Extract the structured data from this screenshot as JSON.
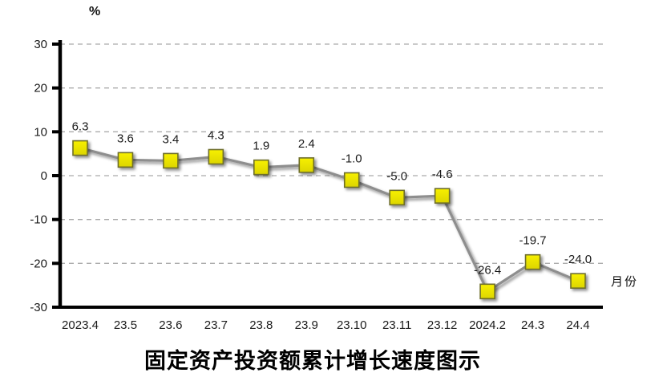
{
  "chart_data": {
    "type": "line",
    "title": "固定资产投资额累计增长速度图示",
    "ylabel": "%",
    "xlabel": "月份",
    "categories": [
      "2023.4",
      "23.5",
      "23.6",
      "23.7",
      "23.8",
      "23.9",
      "23.10",
      "23.11",
      "23.12",
      "2024.2",
      "24.3",
      "24.4"
    ],
    "values": [
      6.3,
      3.6,
      3.4,
      4.3,
      1.9,
      2.4,
      -1.0,
      -5.0,
      -4.6,
      -26.4,
      -19.7,
      -24.0
    ],
    "point_labels": [
      "6.3",
      "3.6",
      "3.4",
      "4.3",
      "1.9",
      "2.4",
      "-1.0",
      "-5.0",
      "-4.6",
      "-26.4",
      "-19.7",
      "-24.0"
    ],
    "ylim": [
      -30,
      30
    ],
    "ytick_interval": 10,
    "yticks": [
      "30",
      "20",
      "10",
      "0",
      "-10",
      "-20",
      "-30"
    ],
    "grid": true,
    "gridline_style": "dashed",
    "legend": "none",
    "colors": {
      "marker_fill_light": "#f7f000",
      "marker_fill": "#dcd500",
      "marker_border": "#6e6e2a",
      "line": "#8e8e8e",
      "grid": "#ababab",
      "axis": "#000000",
      "text": "#1a1a1a"
    }
  }
}
